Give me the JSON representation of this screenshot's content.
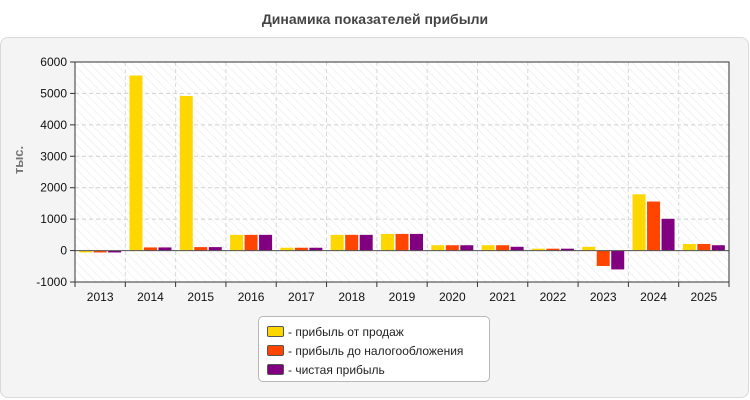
{
  "chart_data": {
    "type": "bar",
    "title": "Динамика показателей прибыли",
    "ylabel": "тыс.",
    "xlabel": "",
    "categories": [
      "2013",
      "2014",
      "2015",
      "2016",
      "2017",
      "2018",
      "2019",
      "2020",
      "2021",
      "2022",
      "2023",
      "2024",
      "2025"
    ],
    "ylim": [
      -1000,
      6000
    ],
    "yticks": [
      -1000,
      0,
      1000,
      2000,
      3000,
      4000,
      5000,
      6000
    ],
    "grid": true,
    "legend_position": "bottom",
    "series": [
      {
        "name": "- прибыль от продаж",
        "color": "#ffd700",
        "values": [
          -60,
          5570,
          4920,
          500,
          90,
          500,
          530,
          170,
          170,
          60,
          120,
          1790,
          210
        ]
      },
      {
        "name": "- прибыль до налогообложения",
        "color": "#ff4500",
        "values": [
          -60,
          100,
          110,
          500,
          90,
          500,
          530,
          170,
          170,
          60,
          -490,
          1560,
          210
        ]
      },
      {
        "name": "- чистая прибыль",
        "color": "#800080",
        "values": [
          -60,
          100,
          110,
          500,
          90,
          500,
          530,
          170,
          120,
          60,
          -600,
          1010,
          170
        ]
      }
    ]
  }
}
